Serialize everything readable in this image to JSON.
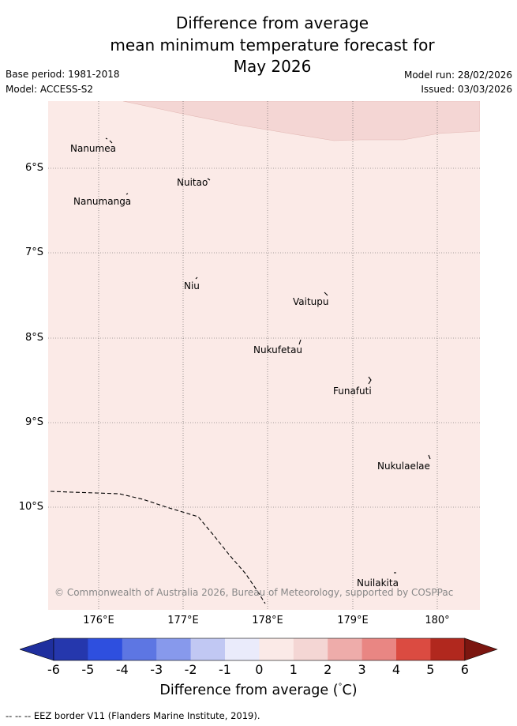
{
  "title": {
    "line1": "Difference from average",
    "line2": "mean minimum temperature forecast for",
    "line3": "May 2026"
  },
  "meta": {
    "base_period": "Base period: 1981-2018",
    "model": "Model: ACCESS-S2",
    "model_run": "Model run: 28/02/2026",
    "issued": "Issued: 03/03/2026"
  },
  "map": {
    "lat_labels": [
      "6°S",
      "7°S",
      "8°S",
      "9°S",
      "10°S"
    ],
    "lon_labels": [
      "176°E",
      "177°E",
      "178°E",
      "179°E",
      "180°"
    ],
    "places": [
      "Nanumea",
      "Nuitao",
      "Nanumanga",
      "Niu",
      "Vaitupu",
      "Nukufetau",
      "Funafuti",
      "Nukulaelae",
      "Nuilakita"
    ],
    "copyright": "© Commonwealth of Australia 2026, Bureau of Meteorology, supported by COSPPac",
    "colors": {
      "background_anomaly_0_1": "#fbeae7",
      "anomaly_1_2": "#f4d6d4",
      "grid": "#555555"
    }
  },
  "colorbar": {
    "ticks": [
      "-6",
      "-5",
      "-4",
      "-3",
      "-2",
      "-1",
      "0",
      "1",
      "2",
      "3",
      "4",
      "5",
      "6"
    ],
    "colors": [
      "#1f2f9e",
      "#2537ad",
      "#2e4fdf",
      "#5d76e3",
      "#8799ec",
      "#c1c8f3",
      "#eaebfb",
      "#fbeae7",
      "#f4d6d4",
      "#eeacaa",
      "#e98683",
      "#db4b41",
      "#b1281e",
      "#7b1610"
    ],
    "label": "Difference from average ( °C)",
    "label_parts": {
      "before": "Difference from average (",
      "degree": "°",
      "after": "C)"
    }
  },
  "footer": "-- -- -- EEZ border V11 (Flanders Marine Institute, 2019)."
}
